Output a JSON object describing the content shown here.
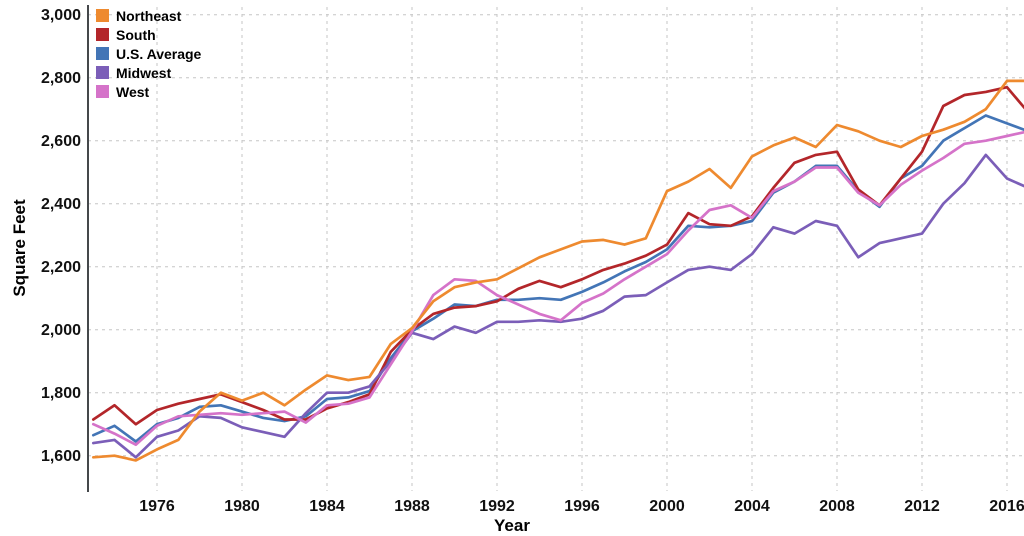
{
  "chart": {
    "y_axis_title": "Square Feet",
    "x_axis_title": "Year"
  },
  "chart_data": {
    "type": "line",
    "title": "",
    "xlabel": "Year",
    "ylabel": "Square Feet",
    "x": [
      1973,
      1974,
      1975,
      1976,
      1977,
      1978,
      1979,
      1980,
      1981,
      1982,
      1983,
      1984,
      1985,
      1986,
      1987,
      1988,
      1989,
      1990,
      1991,
      1992,
      1993,
      1994,
      1995,
      1996,
      1997,
      1998,
      1999,
      2000,
      2001,
      2002,
      2003,
      2004,
      2005,
      2006,
      2007,
      2008,
      2009,
      2010,
      2011,
      2012,
      2013,
      2014,
      2015,
      2016,
      2017
    ],
    "series": [
      {
        "name": "Northeast",
        "color": "#EE8A2F",
        "values": [
          1595,
          1600,
          1585,
          1620,
          1650,
          1740,
          1800,
          1775,
          1800,
          1760,
          1810,
          1855,
          1840,
          1850,
          1955,
          2005,
          2090,
          2135,
          2150,
          2160,
          2195,
          2230,
          2255,
          2280,
          2285,
          2270,
          2290,
          2440,
          2470,
          2510,
          2450,
          2550,
          2585,
          2610,
          2580,
          2650,
          2630,
          2600,
          2580,
          2615,
          2635,
          2660,
          2700,
          2790,
          2790
        ]
      },
      {
        "name": "South",
        "color": "#B3262A",
        "values": [
          1715,
          1760,
          1700,
          1745,
          1765,
          1780,
          1795,
          1770,
          1745,
          1715,
          1715,
          1750,
          1770,
          1795,
          1930,
          2000,
          2050,
          2070,
          2075,
          2090,
          2130,
          2155,
          2135,
          2160,
          2190,
          2210,
          2235,
          2270,
          2370,
          2335,
          2330,
          2360,
          2450,
          2530,
          2555,
          2565,
          2445,
          2395,
          2480,
          2565,
          2710,
          2745,
          2755,
          2770,
          2690
        ]
      },
      {
        "name": "U.S. Average",
        "color": "#4375B6",
        "values": [
          1665,
          1695,
          1645,
          1700,
          1720,
          1755,
          1760,
          1740,
          1720,
          1710,
          1725,
          1780,
          1785,
          1805,
          1910,
          1995,
          2035,
          2080,
          2075,
          2095,
          2095,
          2100,
          2095,
          2120,
          2150,
          2185,
          2215,
          2255,
          2330,
          2325,
          2330,
          2345,
          2435,
          2470,
          2520,
          2520,
          2440,
          2390,
          2480,
          2520,
          2600,
          2640,
          2680,
          2655,
          2630
        ]
      },
      {
        "name": "Midwest",
        "color": "#7B5EB8",
        "values": [
          1640,
          1650,
          1595,
          1660,
          1680,
          1725,
          1720,
          1690,
          1675,
          1660,
          1735,
          1800,
          1800,
          1820,
          1900,
          1990,
          1970,
          2010,
          1990,
          2025,
          2025,
          2030,
          2025,
          2035,
          2060,
          2105,
          2110,
          2150,
          2190,
          2200,
          2190,
          2240,
          2325,
          2305,
          2345,
          2330,
          2230,
          2275,
          2290,
          2305,
          2400,
          2465,
          2555,
          2480,
          2450
        ]
      },
      {
        "name": "West",
        "color": "#D573C9",
        "values": [
          1700,
          1670,
          1635,
          1695,
          1725,
          1730,
          1735,
          1730,
          1735,
          1740,
          1705,
          1760,
          1765,
          1785,
          1890,
          1995,
          2110,
          2160,
          2155,
          2110,
          2080,
          2050,
          2030,
          2085,
          2115,
          2160,
          2200,
          2240,
          2315,
          2380,
          2395,
          2355,
          2440,
          2470,
          2515,
          2515,
          2435,
          2395,
          2460,
          2505,
          2545,
          2590,
          2600,
          2615,
          2630
        ]
      }
    ],
    "x_ticks": [
      1976,
      1980,
      1984,
      1988,
      1992,
      1996,
      2000,
      2004,
      2008,
      2012,
      2016
    ],
    "y_ticks": [
      {
        "value": 1600,
        "label": "1,600"
      },
      {
        "value": 1800,
        "label": "1,800"
      },
      {
        "value": 2000,
        "label": "2,000"
      },
      {
        "value": 2200,
        "label": "2,200"
      },
      {
        "value": 2400,
        "label": "2,400"
      },
      {
        "value": 2600,
        "label": "2,600"
      },
      {
        "value": 2800,
        "label": "2,800"
      },
      {
        "value": 3000,
        "label": "3,000"
      }
    ],
    "xlim": [
      1972.75,
      2016.85
    ],
    "ylim": [
      1490,
      3025
    ],
    "grid": true,
    "legend_position": "top-left"
  },
  "style": {
    "grid_color": "#c6c6c6",
    "axis_color": "#45484b",
    "background": "#ffffff"
  }
}
